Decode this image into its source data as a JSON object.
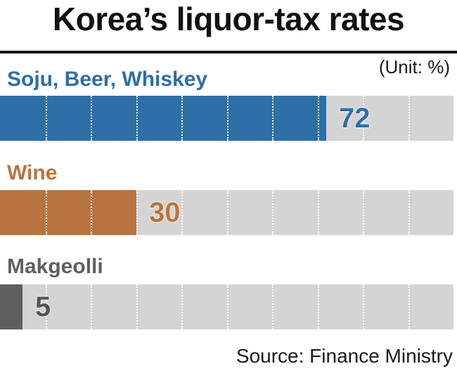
{
  "title": "Korea’s liquor-tax rates",
  "unit": "(Unit: %)",
  "source": "Source: Finance Ministry",
  "chart_data": {
    "type": "bar",
    "orientation": "horizontal",
    "title": "Korea’s liquor-tax rates",
    "categories": [
      "Soju, Beer, Whiskey",
      "Wine",
      "Makgeolli"
    ],
    "values": [
      72,
      30,
      5
    ],
    "xlim": [
      0,
      100
    ],
    "colors": [
      "#2e6fa5",
      "#b87440",
      "#5f5f60"
    ],
    "track_color": "#d4d4d4",
    "grid": true,
    "unit": "%"
  }
}
